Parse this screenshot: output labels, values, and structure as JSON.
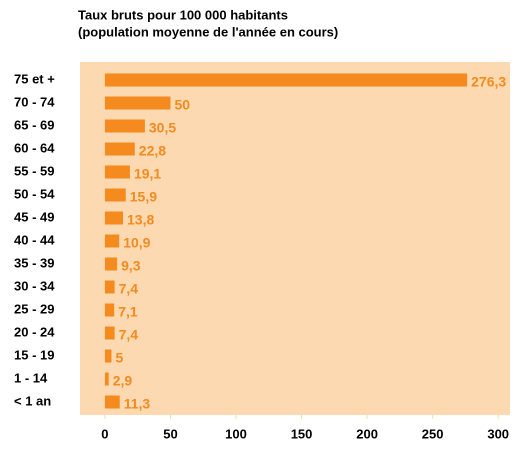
{
  "chart_data": {
    "type": "hbar",
    "title": "Taux bruts pour 100 000 habitants",
    "subtitle": "(population moyenne de l'année en cours)",
    "categories": [
      "75 et +",
      "70 - 74",
      "65 - 69",
      "60 - 64",
      "55 - 59",
      "50 - 54",
      "45 - 49",
      "40 - 44",
      "35 - 39",
      "30 - 34",
      "25 - 29",
      "20 - 24",
      "15 - 19",
      "1 - 14",
      "< 1 an"
    ],
    "values": [
      276.3,
      50,
      30.5,
      22.8,
      19.1,
      15.9,
      13.8,
      10.9,
      9.3,
      7.4,
      7.1,
      7.4,
      5,
      2.9,
      11.3
    ],
    "value_labels": [
      "276,3",
      "50",
      "30,5",
      "22,8",
      "19,1",
      "15,9",
      "13,8",
      "10,9",
      "9,3",
      "7,4",
      "7,1",
      "7,4",
      "5",
      "2,9",
      "11,3"
    ],
    "color": "#f58a1f",
    "background": "#fcd9b0",
    "xlim": [
      -19,
      309
    ],
    "xticks": [
      0,
      50,
      100,
      150,
      200,
      250,
      300
    ]
  }
}
